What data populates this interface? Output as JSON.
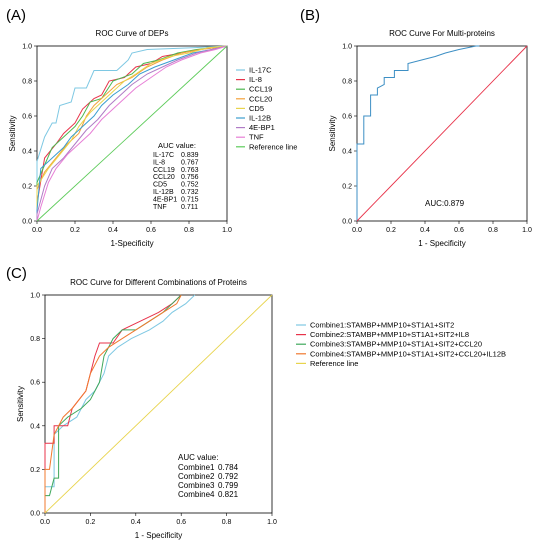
{
  "colors": {
    "IL-17C": "#7EC8E3",
    "IL-8": "#E8334A",
    "CCL19": "#4CB84F",
    "CCL20": "#F3A23A",
    "CD5": "#E8D44D",
    "IL-12B": "#3B9ECF",
    "4E-BP1": "#B07CC6",
    "TNF": "#E77FD6",
    "Reference line": "#5DCB5A",
    "roc_b": "#3D8FC4",
    "ref_b": "#E8334A",
    "Combine1": "#7EC8E3",
    "Combine2": "#E8334A",
    "Combine3": "#3FA85B",
    "Combine4": "#F0782E",
    "ref_c": "#E8D44D"
  },
  "panels": {
    "A": {
      "label": "(A)"
    },
    "B": {
      "label": "(B)"
    },
    "C": {
      "label": "(C)"
    }
  },
  "chart_data": [
    {
      "panel": "A",
      "type": "line",
      "title": "ROC Curve of DEPs",
      "xlabel": "1-Specificity",
      "ylabel": "Sensitivity",
      "xlim": [
        0,
        1
      ],
      "ylim": [
        0,
        1
      ],
      "ticks": [
        "0.0",
        "0.2",
        "0.4",
        "0.6",
        "0.8",
        "1.0"
      ],
      "legend_position": "right",
      "auc_title": "AUC value:",
      "series": [
        {
          "name": "IL-17C",
          "auc": "0.839",
          "points": [
            [
              0,
              0
            ],
            [
              0,
              0.34
            ],
            [
              0.04,
              0.48
            ],
            [
              0.08,
              0.56
            ],
            [
              0.1,
              0.56
            ],
            [
              0.12,
              0.66
            ],
            [
              0.18,
              0.68
            ],
            [
              0.2,
              0.76
            ],
            [
              0.26,
              0.76
            ],
            [
              0.3,
              0.86
            ],
            [
              0.42,
              0.86
            ],
            [
              0.48,
              0.92
            ],
            [
              0.5,
              0.96
            ],
            [
              0.58,
              0.98
            ],
            [
              0.82,
              0.99
            ],
            [
              1,
              1
            ]
          ]
        },
        {
          "name": "IL-8",
          "auc": "0.767",
          "points": [
            [
              0,
              0
            ],
            [
              0,
              0.1
            ],
            [
              0.04,
              0.36
            ],
            [
              0.1,
              0.44
            ],
            [
              0.14,
              0.5
            ],
            [
              0.2,
              0.56
            ],
            [
              0.24,
              0.64
            ],
            [
              0.3,
              0.7
            ],
            [
              0.34,
              0.72
            ],
            [
              0.38,
              0.8
            ],
            [
              0.46,
              0.82
            ],
            [
              0.52,
              0.88
            ],
            [
              0.6,
              0.9
            ],
            [
              0.66,
              0.94
            ],
            [
              0.76,
              0.96
            ],
            [
              0.86,
              0.98
            ],
            [
              1,
              1
            ]
          ]
        },
        {
          "name": "CCL19",
          "auc": "0.763",
          "points": [
            [
              0,
              0
            ],
            [
              0,
              0.22
            ],
            [
              0.04,
              0.32
            ],
            [
              0.08,
              0.42
            ],
            [
              0.14,
              0.48
            ],
            [
              0.2,
              0.54
            ],
            [
              0.24,
              0.6
            ],
            [
              0.28,
              0.68
            ],
            [
              0.34,
              0.7
            ],
            [
              0.4,
              0.8
            ],
            [
              0.5,
              0.84
            ],
            [
              0.56,
              0.9
            ],
            [
              0.64,
              0.92
            ],
            [
              0.74,
              0.96
            ],
            [
              0.84,
              0.98
            ],
            [
              1,
              1
            ]
          ]
        },
        {
          "name": "CCL20",
          "auc": "0.756",
          "points": [
            [
              0,
              0
            ],
            [
              0,
              0.18
            ],
            [
              0.04,
              0.28
            ],
            [
              0.1,
              0.36
            ],
            [
              0.16,
              0.44
            ],
            [
              0.22,
              0.5
            ],
            [
              0.26,
              0.6
            ],
            [
              0.3,
              0.66
            ],
            [
              0.36,
              0.72
            ],
            [
              0.42,
              0.78
            ],
            [
              0.5,
              0.82
            ],
            [
              0.58,
              0.88
            ],
            [
              0.66,
              0.92
            ],
            [
              0.76,
              0.96
            ],
            [
              0.86,
              0.98
            ],
            [
              1,
              1
            ]
          ]
        },
        {
          "name": "CD5",
          "auc": "0.752",
          "points": [
            [
              0,
              0
            ],
            [
              0,
              0.2
            ],
            [
              0.06,
              0.3
            ],
            [
              0.12,
              0.38
            ],
            [
              0.18,
              0.46
            ],
            [
              0.22,
              0.54
            ],
            [
              0.28,
              0.62
            ],
            [
              0.34,
              0.68
            ],
            [
              0.4,
              0.74
            ],
            [
              0.46,
              0.8
            ],
            [
              0.52,
              0.84
            ],
            [
              0.6,
              0.9
            ],
            [
              0.7,
              0.94
            ],
            [
              0.8,
              0.96
            ],
            [
              0.9,
              0.99
            ],
            [
              1,
              1
            ]
          ]
        },
        {
          "name": "IL-12B",
          "auc": "0.732",
          "points": [
            [
              0,
              0
            ],
            [
              0,
              0.06
            ],
            [
              0.02,
              0.3
            ],
            [
              0.08,
              0.36
            ],
            [
              0.14,
              0.42
            ],
            [
              0.18,
              0.48
            ],
            [
              0.24,
              0.54
            ],
            [
              0.3,
              0.6
            ],
            [
              0.34,
              0.66
            ],
            [
              0.4,
              0.72
            ],
            [
              0.48,
              0.78
            ],
            [
              0.54,
              0.84
            ],
            [
              0.62,
              0.88
            ],
            [
              0.72,
              0.92
            ],
            [
              0.82,
              0.96
            ],
            [
              0.92,
              0.98
            ],
            [
              1,
              1
            ]
          ]
        },
        {
          "name": "4E-BP1",
          "auc": "0.715",
          "points": [
            [
              0,
              0
            ],
            [
              0,
              0.04
            ],
            [
              0.04,
              0.2
            ],
            [
              0.08,
              0.3
            ],
            [
              0.14,
              0.36
            ],
            [
              0.2,
              0.44
            ],
            [
              0.26,
              0.52
            ],
            [
              0.32,
              0.58
            ],
            [
              0.38,
              0.66
            ],
            [
              0.44,
              0.72
            ],
            [
              0.5,
              0.78
            ],
            [
              0.58,
              0.84
            ],
            [
              0.66,
              0.88
            ],
            [
              0.74,
              0.92
            ],
            [
              0.84,
              0.96
            ],
            [
              0.92,
              0.98
            ],
            [
              1,
              1
            ]
          ]
        },
        {
          "name": "TNF",
          "auc": "0.711",
          "points": [
            [
              0,
              0
            ],
            [
              0.02,
              0.08
            ],
            [
              0.06,
              0.22
            ],
            [
              0.1,
              0.3
            ],
            [
              0.16,
              0.38
            ],
            [
              0.22,
              0.44
            ],
            [
              0.28,
              0.5
            ],
            [
              0.34,
              0.58
            ],
            [
              0.4,
              0.64
            ],
            [
              0.46,
              0.7
            ],
            [
              0.52,
              0.76
            ],
            [
              0.6,
              0.82
            ],
            [
              0.68,
              0.88
            ],
            [
              0.76,
              0.92
            ],
            [
              0.86,
              0.96
            ],
            [
              0.94,
              0.98
            ],
            [
              1,
              1
            ]
          ]
        },
        {
          "name": "Reference line",
          "reference": true,
          "points": [
            [
              0,
              0
            ],
            [
              1,
              1
            ]
          ]
        }
      ]
    },
    {
      "panel": "B",
      "type": "line",
      "title": "ROC Curve For Multi-proteins",
      "xlabel": "1 - Specificity",
      "ylabel": "Sensitivity",
      "xlim": [
        0,
        1
      ],
      "ylim": [
        0,
        1
      ],
      "ticks": [
        "0.0",
        "0.2",
        "0.4",
        "0.6",
        "0.8",
        "1.0"
      ],
      "auc_text": "AUC:0.879",
      "series": [
        {
          "points": [
            [
              0,
              0
            ],
            [
              0,
              0.44
            ],
            [
              0.04,
              0.44
            ],
            [
              0.04,
              0.6
            ],
            [
              0.08,
              0.6
            ],
            [
              0.08,
              0.72
            ],
            [
              0.12,
              0.72
            ],
            [
              0.12,
              0.76
            ],
            [
              0.16,
              0.78
            ],
            [
              0.16,
              0.82
            ],
            [
              0.22,
              0.82
            ],
            [
              0.22,
              0.86
            ],
            [
              0.3,
              0.86
            ],
            [
              0.3,
              0.9
            ],
            [
              0.38,
              0.92
            ],
            [
              0.46,
              0.94
            ],
            [
              0.52,
              0.96
            ],
            [
              0.6,
              0.98
            ],
            [
              0.7,
              1
            ],
            [
              0.72,
              1
            ]
          ]
        },
        {
          "reference": true,
          "points": [
            [
              0,
              0
            ],
            [
              1,
              1
            ]
          ]
        }
      ]
    },
    {
      "panel": "C",
      "type": "line",
      "title": "ROC Curve for Different Combinations of Proteins",
      "xlabel": "1 - Specificity",
      "ylabel": "Sensitivity",
      "xlim": [
        0,
        1
      ],
      "ylim": [
        0,
        1
      ],
      "ticks": [
        "0.0",
        "0.2",
        "0.4",
        "0.6",
        "0.8",
        "1.0"
      ],
      "legend_position": "right",
      "auc_title": "AUC value:",
      "series": [
        {
          "name": "Combine1:STAMBP+MMP10+ST1A1+SIT2",
          "key": "Combine1",
          "auc": "0.784",
          "points": [
            [
              0,
              0
            ],
            [
              0,
              0.12
            ],
            [
              0.04,
              0.12
            ],
            [
              0.04,
              0.36
            ],
            [
              0.08,
              0.4
            ],
            [
              0.14,
              0.44
            ],
            [
              0.18,
              0.52
            ],
            [
              0.22,
              0.56
            ],
            [
              0.26,
              0.64
            ],
            [
              0.28,
              0.72
            ],
            [
              0.32,
              0.76
            ],
            [
              0.38,
              0.8
            ],
            [
              0.46,
              0.84
            ],
            [
              0.52,
              0.88
            ],
            [
              0.56,
              0.92
            ],
            [
              0.62,
              0.96
            ],
            [
              0.66,
              1
            ]
          ]
        },
        {
          "name": "Combine2:STAMBP+MMP10+ST1A1+SIT2+IL8",
          "key": "Combine2",
          "auc": "0.792",
          "points": [
            [
              0,
              0
            ],
            [
              0,
              0.32
            ],
            [
              0.04,
              0.32
            ],
            [
              0.04,
              0.4
            ],
            [
              0.1,
              0.4
            ],
            [
              0.12,
              0.48
            ],
            [
              0.18,
              0.56
            ],
            [
              0.22,
              0.72
            ],
            [
              0.24,
              0.78
            ],
            [
              0.3,
              0.78
            ],
            [
              0.34,
              0.84
            ],
            [
              0.42,
              0.88
            ],
            [
              0.5,
              0.92
            ],
            [
              0.56,
              0.96
            ],
            [
              0.6,
              1
            ]
          ]
        },
        {
          "name": "Combine3:STAMBP+MMP10+ST1A1+SIT2+CCL20",
          "key": "Combine3",
          "auc": "0.799",
          "points": [
            [
              0,
              0
            ],
            [
              0,
              0.08
            ],
            [
              0.02,
              0.08
            ],
            [
              0.04,
              0.16
            ],
            [
              0.06,
              0.16
            ],
            [
              0.06,
              0.4
            ],
            [
              0.1,
              0.44
            ],
            [
              0.16,
              0.48
            ],
            [
              0.2,
              0.52
            ],
            [
              0.24,
              0.6
            ],
            [
              0.26,
              0.72
            ],
            [
              0.3,
              0.8
            ],
            [
              0.34,
              0.84
            ],
            [
              0.4,
              0.84
            ],
            [
              0.46,
              0.88
            ],
            [
              0.52,
              0.92
            ],
            [
              0.56,
              0.96
            ],
            [
              0.6,
              1
            ]
          ]
        },
        {
          "name": "Combine4:STAMBP+MMP10+ST1A1+SIT2+CCL20+IL12B",
          "key": "Combine4",
          "auc": "0.821",
          "points": [
            [
              0,
              0
            ],
            [
              0,
              0.2
            ],
            [
              0.02,
              0.2
            ],
            [
              0.04,
              0.36
            ],
            [
              0.08,
              0.44
            ],
            [
              0.12,
              0.48
            ],
            [
              0.18,
              0.56
            ],
            [
              0.2,
              0.64
            ],
            [
              0.24,
              0.72
            ],
            [
              0.28,
              0.76
            ],
            [
              0.34,
              0.8
            ],
            [
              0.4,
              0.84
            ],
            [
              0.46,
              0.88
            ],
            [
              0.52,
              0.92
            ],
            [
              0.58,
              0.96
            ],
            [
              0.6,
              1
            ]
          ]
        },
        {
          "name": "Reference line",
          "key": "ref_c",
          "reference": true,
          "points": [
            [
              0,
              0
            ],
            [
              1,
              1
            ]
          ]
        }
      ]
    }
  ]
}
